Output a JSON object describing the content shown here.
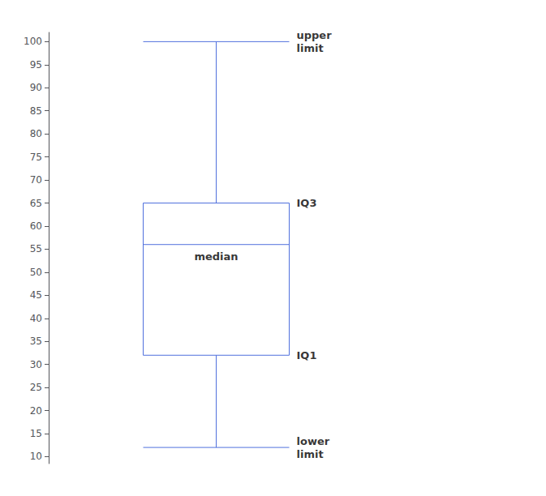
{
  "chart_data": {
    "type": "boxplot",
    "values": [
      12,
      32,
      56,
      65,
      100
    ],
    "annotations": [
      {
        "text": "upper\nlimit",
        "y": 100
      },
      {
        "text": "IQ3",
        "y": 65
      },
      {
        "text": "median",
        "y": 56
      },
      {
        "text": "IQ1",
        "y": 32
      },
      {
        "text": "lower\nlimit",
        "y": 12
      }
    ],
    "ylim": [
      8.5,
      102
    ],
    "yticks": [
      10,
      15,
      20,
      25,
      30,
      35,
      40,
      45,
      50,
      55,
      60,
      65,
      70,
      75,
      80,
      85,
      90,
      95,
      100
    ],
    "grid": false,
    "tick_labels": "y"
  }
}
